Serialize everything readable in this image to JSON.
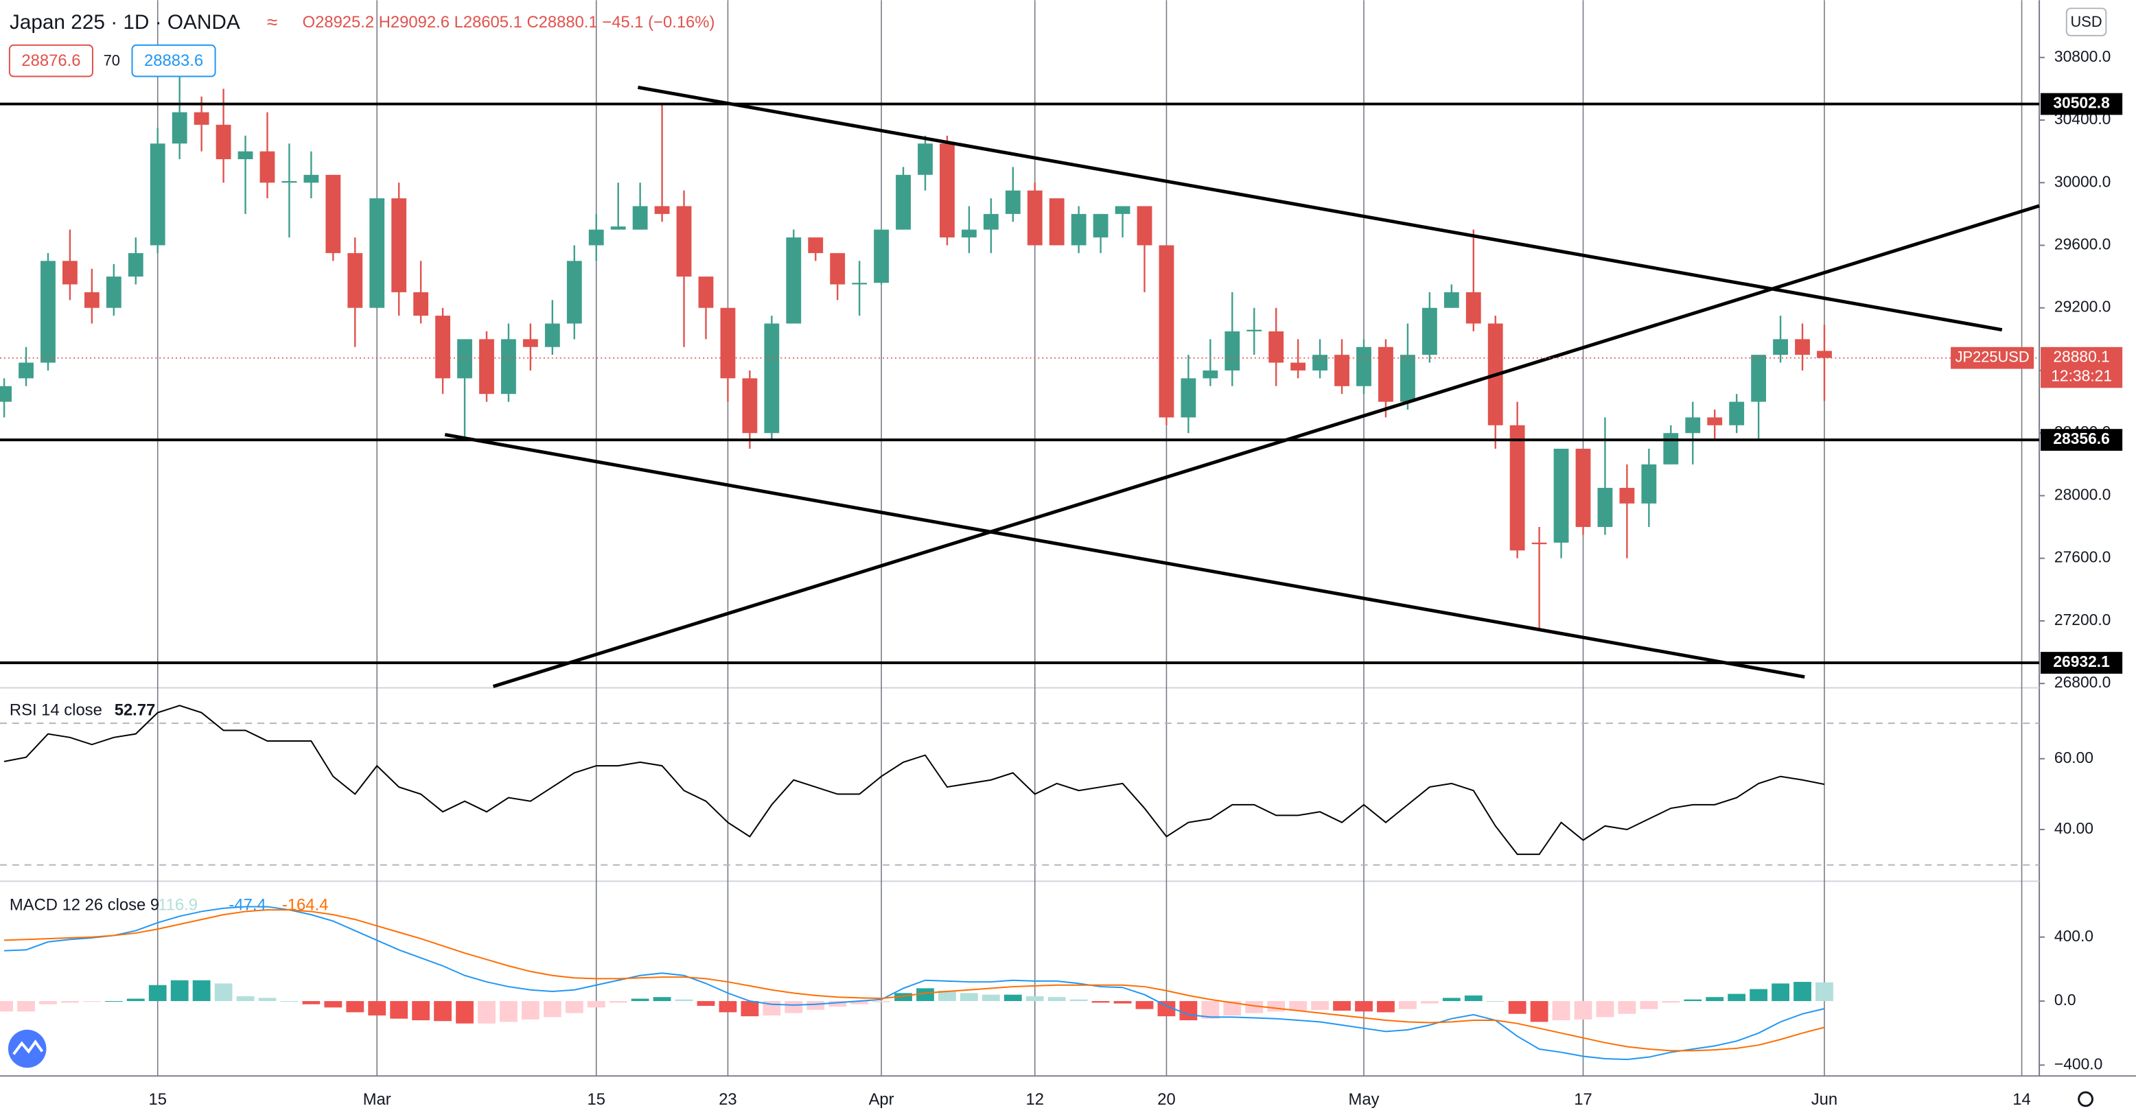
{
  "header": {
    "symbol": "Japan 225 · 1D · OANDA",
    "ohlc": [
      "O28925.2",
      "H29092.6",
      "L28605.1",
      "C28880.1",
      "−45.1 (−0.16%)"
    ],
    "bid": 28876.6,
    "spread": 70,
    "ask": 28883.6,
    "currency": "USD"
  },
  "chart_data": [
    {
      "type": "candlestick",
      "up_color": "#3e9e8c",
      "down_color": "#e0524d",
      "xlim": [
        -0.19,
        92.8
      ],
      "xticks": [
        {
          "value": 7,
          "label": "15"
        },
        {
          "value": 17,
          "label": "Mar"
        },
        {
          "value": 27,
          "label": "15"
        },
        {
          "value": 33,
          "label": "23"
        },
        {
          "value": 40,
          "label": "Apr"
        },
        {
          "value": 47,
          "label": "12"
        },
        {
          "value": 53,
          "label": "20"
        },
        {
          "value": 62,
          "label": "May"
        },
        {
          "value": 72,
          "label": "17"
        },
        {
          "value": 83,
          "label": "Jun"
        },
        {
          "value": 92,
          "label": "14"
        }
      ],
      "ylim": [
        26772,
        31166
      ],
      "yticks": [
        {
          "value": 26800,
          "label": "26800.0"
        },
        {
          "value": 27200,
          "label": "27200.0"
        },
        {
          "value": 27600,
          "label": "27600.0"
        },
        {
          "value": 28000,
          "label": "28000.0"
        },
        {
          "value": 28400,
          "label": "28400.0"
        },
        {
          "value": 28800,
          "label": "28800.0"
        },
        {
          "value": 29200,
          "label": "29200.0"
        },
        {
          "value": 29600,
          "label": "29600.0"
        },
        {
          "value": 30000,
          "label": "30000.0"
        },
        {
          "value": 30400,
          "label": "30400.0"
        },
        {
          "value": 30800,
          "label": "30800.0"
        }
      ],
      "candles": [
        [
          28600,
          28750,
          28500,
          28700
        ],
        [
          28750,
          28950,
          28700,
          28850
        ],
        [
          28850,
          29550,
          28800,
          29500
        ],
        [
          29500,
          29700,
          29250,
          29350
        ],
        [
          29300,
          29450,
          29100,
          29200
        ],
        [
          29200,
          29480,
          29150,
          29400
        ],
        [
          29400,
          29650,
          29350,
          29550
        ],
        [
          29600,
          30350,
          29550,
          30250
        ],
        [
          30250,
          30700,
          30150,
          30450
        ],
        [
          30450,
          30550,
          30200,
          30370
        ],
        [
          30370,
          30600,
          30000,
          30150
        ],
        [
          30150,
          30300,
          29800,
          30200
        ],
        [
          30200,
          30450,
          29900,
          30000
        ],
        [
          30000,
          30250,
          29650,
          30010
        ],
        [
          30000,
          30200,
          29900,
          30050
        ],
        [
          30050,
          30050,
          29500,
          29550
        ],
        [
          29550,
          29650,
          28950,
          29200
        ],
        [
          29200,
          29900,
          29200,
          29900
        ],
        [
          29900,
          30000,
          29150,
          29300
        ],
        [
          29300,
          29500,
          29100,
          29150
        ],
        [
          29150,
          29200,
          28650,
          28750
        ],
        [
          28750,
          29000,
          28350,
          29000
        ],
        [
          29000,
          29050,
          28600,
          28650
        ],
        [
          28650,
          29100,
          28600,
          29000
        ],
        [
          29000,
          29100,
          28800,
          28950
        ],
        [
          28950,
          29250,
          28900,
          29100
        ],
        [
          29100,
          29600,
          29000,
          29500
        ],
        [
          29600,
          29800,
          29500,
          29700
        ],
        [
          29700,
          30000,
          29700,
          29720
        ],
        [
          29700,
          30000,
          29700,
          29850
        ],
        [
          29850,
          30500,
          29750,
          29800
        ],
        [
          29850,
          29950,
          28950,
          29400
        ],
        [
          29400,
          29400,
          29000,
          29200
        ],
        [
          29200,
          29200,
          28600,
          28750
        ],
        [
          28750,
          28800,
          28300,
          28400
        ],
        [
          28400,
          29150,
          28350,
          29100
        ],
        [
          29100,
          29700,
          29100,
          29650
        ],
        [
          29650,
          29650,
          29500,
          29550
        ],
        [
          29550,
          29550,
          29250,
          29350
        ],
        [
          29350,
          29500,
          29150,
          29360
        ],
        [
          29360,
          29700,
          29350,
          29700
        ],
        [
          29700,
          30100,
          29700,
          30050
        ],
        [
          30050,
          30300,
          29950,
          30250
        ],
        [
          30250,
          30300,
          29600,
          29650
        ],
        [
          29650,
          29850,
          29550,
          29700
        ],
        [
          29700,
          29900,
          29550,
          29800
        ],
        [
          29800,
          30100,
          29750,
          29950
        ],
        [
          29950,
          30000,
          29600,
          29600
        ],
        [
          29900,
          29900,
          29600,
          29600
        ],
        [
          29600,
          29850,
          29550,
          29800
        ],
        [
          29650,
          29800,
          29550,
          29800
        ],
        [
          29800,
          29850,
          29650,
          29850
        ],
        [
          29850,
          29850,
          29300,
          29600
        ],
        [
          29600,
          29600,
          28450,
          28500
        ],
        [
          28500,
          28900,
          28400,
          28750
        ],
        [
          28750,
          29000,
          28700,
          28800
        ],
        [
          28800,
          29300,
          28700,
          29050
        ],
        [
          29050,
          29200,
          28900,
          29060
        ],
        [
          29050,
          29200,
          28700,
          28850
        ],
        [
          28850,
          29000,
          28750,
          28800
        ],
        [
          28800,
          29000,
          28750,
          28900
        ],
        [
          28900,
          29000,
          28650,
          28700
        ],
        [
          28700,
          29000,
          28650,
          28950
        ],
        [
          28950,
          29000,
          28500,
          28600
        ],
        [
          28600,
          29100,
          28550,
          28900
        ],
        [
          28900,
          29300,
          28850,
          29200
        ],
        [
          29200,
          29350,
          29200,
          29300
        ],
        [
          29300,
          29700,
          29050,
          29100
        ],
        [
          29100,
          29150,
          28300,
          28450
        ],
        [
          28450,
          28600,
          27600,
          27650
        ],
        [
          27700,
          27800,
          27150,
          27690
        ],
        [
          27700,
          28300,
          27600,
          28300
        ],
        [
          28300,
          28300,
          27750,
          27800
        ],
        [
          27800,
          28500,
          27750,
          28050
        ],
        [
          28050,
          28200,
          27600,
          27950
        ],
        [
          27950,
          28300,
          27800,
          28200
        ],
        [
          28200,
          28450,
          28200,
          28400
        ],
        [
          28400,
          28600,
          28200,
          28500
        ],
        [
          28500,
          28550,
          28350,
          28450
        ],
        [
          28450,
          28650,
          28400,
          28600
        ],
        [
          28600,
          28900,
          28350,
          28900
        ],
        [
          28900,
          29150,
          28850,
          29000
        ],
        [
          29000,
          29100,
          28800,
          28900
        ],
        [
          28925.2,
          29092.6,
          28605.1,
          28880.1
        ]
      ],
      "levels": [
        30502.8,
        28356.6,
        26932.1
      ],
      "level_color": "#000000",
      "trendlines": [
        [
          [
            28.9,
            30609
          ],
          [
            91.1,
            29060
          ]
        ],
        [
          [
            22.3,
            26781
          ],
          [
            92.8,
            29852
          ]
        ],
        [
          [
            20.1,
            28390
          ],
          [
            82.1,
            26842
          ]
        ]
      ],
      "last_price": {
        "symbol": "JP225USD",
        "value": 28880.1,
        "countdown": "12:38:21",
        "color": "#e0524d"
      }
    },
    {
      "type": "line",
      "title": "RSI 14 close",
      "color": "#000000",
      "ylim": [
        25.4,
        80
      ],
      "yticks": [
        {
          "value": 40,
          "label": "40.00"
        },
        {
          "value": 60,
          "label": "60.00"
        }
      ],
      "bands": [
        30,
        70
      ],
      "values": [
        59.2,
        60.4,
        67,
        66,
        64,
        66,
        67,
        73,
        75,
        73,
        68,
        68,
        65,
        65,
        65,
        55,
        50,
        58,
        52,
        50,
        45,
        48,
        45,
        49,
        48,
        52,
        56,
        58,
        58,
        59,
        58,
        51,
        48,
        42,
        38,
        47,
        54,
        52,
        50,
        50,
        55,
        59,
        61,
        52,
        53,
        54,
        56,
        50,
        53,
        51,
        52,
        53,
        46,
        38,
        42,
        43,
        47,
        47,
        44,
        44,
        45,
        42,
        47,
        42,
        47,
        52,
        53,
        51,
        41,
        33,
        33,
        42,
        37,
        41,
        40,
        43,
        46,
        47,
        47,
        49,
        53,
        55,
        54,
        52.77
      ]
    },
    {
      "type": "macd",
      "title": "MACD 12 26 close 9",
      "ylim": [
        -468,
        749
      ],
      "yticks": [
        {
          "value": -400,
          "label": "−400.0"
        },
        {
          "value": 0,
          "label": "0.0"
        },
        {
          "value": 400,
          "label": "400.0"
        }
      ],
      "histogram": {
        "colors": [
          "#26a69a",
          "#b2dfdb",
          "#ffcdd2",
          "#ef5350"
        ],
        "values": [
          -65,
          -65,
          -20,
          -10,
          -5,
          0,
          15,
          100,
          130,
          130,
          110,
          30,
          20,
          0,
          -20,
          -40,
          -70,
          -90,
          -110,
          -120,
          -125,
          -140,
          -140,
          -130,
          -115,
          -100,
          -75,
          -40,
          -10,
          15,
          25,
          10,
          -30,
          -70,
          -95,
          -90,
          -75,
          -55,
          -35,
          -20,
          -7,
          50,
          80,
          65,
          50,
          40,
          40,
          30,
          25,
          10,
          -10,
          -15,
          -50,
          -95,
          -120,
          -110,
          -90,
          -75,
          -65,
          -60,
          -55,
          -60,
          -65,
          -70,
          -50,
          -15,
          20,
          35,
          0,
          -80,
          -130,
          -120,
          -115,
          -100,
          -80,
          -50,
          -10,
          10,
          25,
          45,
          75,
          110,
          120,
          116.9
        ]
      },
      "macd": {
        "color": "#2196f3",
        "values": [
          315,
          320,
          370,
          385,
          395,
          410,
          440,
          490,
          530,
          560,
          580,
          590,
          590,
          570,
          540,
          500,
          440,
          380,
          320,
          270,
          220,
          160,
          120,
          90,
          70,
          60,
          70,
          100,
          130,
          160,
          175,
          160,
          110,
          50,
          0,
          -20,
          -25,
          -20,
          -10,
          0,
          10,
          80,
          130,
          125,
          120,
          120,
          130,
          125,
          125,
          110,
          90,
          85,
          40,
          -30,
          -85,
          -100,
          -100,
          -105,
          -110,
          -120,
          -130,
          -150,
          -170,
          -190,
          -180,
          -150,
          -110,
          -85,
          -120,
          -220,
          -300,
          -320,
          -345,
          -360,
          -365,
          -350,
          -320,
          -300,
          -280,
          -250,
          -200,
          -130,
          -80,
          -47.4
        ]
      },
      "signal": {
        "color": "#ff6d00",
        "values": [
          380,
          385,
          390,
          395,
          400,
          410,
          425,
          450,
          480,
          510,
          540,
          560,
          570,
          570,
          560,
          540,
          510,
          470,
          430,
          390,
          345,
          300,
          260,
          220,
          185,
          160,
          145,
          140,
          140,
          145,
          150,
          150,
          140,
          120,
          95,
          70,
          50,
          35,
          25,
          20,
          17,
          30,
          50,
          60,
          70,
          80,
          90,
          95,
          100,
          100,
          100,
          100,
          90,
          65,
          35,
          10,
          -10,
          -30,
          -45,
          -60,
          -75,
          -90,
          -105,
          -120,
          -130,
          -135,
          -130,
          -120,
          -120,
          -140,
          -170,
          -200,
          -230,
          -260,
          -285,
          -300,
          -310,
          -310,
          -305,
          -295,
          -275,
          -240,
          -200,
          -164.4
        ]
      }
    }
  ]
}
